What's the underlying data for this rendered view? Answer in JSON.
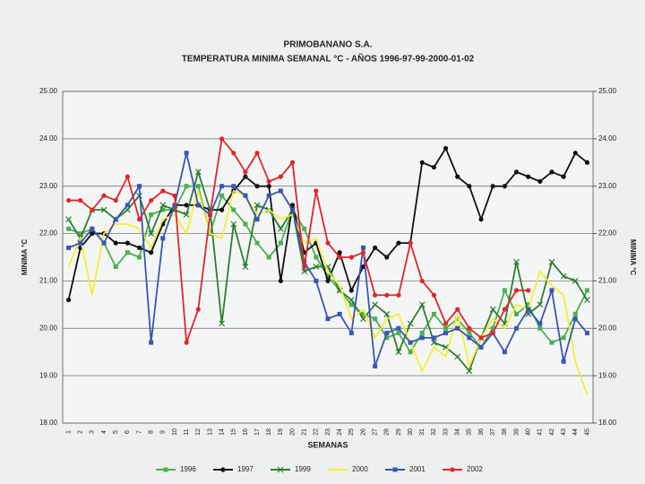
{
  "chart_data": {
    "type": "line",
    "title": "PRIMOBANANO S.A.",
    "subtitle": "TEMPERATURA MINIMA SEMANAL °C - AÑOS 1996-97-99-2000-01-02",
    "xlabel": "SEMANAS",
    "ylabel": "MINIMA °C",
    "y2label": "MINIMA °C",
    "categories": [
      "1",
      "2",
      "3",
      "4",
      "5",
      "6",
      "7",
      "8",
      "9",
      "10",
      "11",
      "12",
      "13",
      "14",
      "15",
      "16",
      "17",
      "18",
      "19",
      "20",
      "21",
      "22",
      "23",
      "24",
      "25",
      "26",
      "27",
      "28",
      "29",
      "30",
      "31",
      "32",
      "33",
      "34",
      "35",
      "36",
      "37",
      "38",
      "39",
      "40",
      "41",
      "42",
      "43",
      "44",
      "45"
    ],
    "ylim": [
      18,
      25
    ],
    "yticks": [
      {
        "value": 18,
        "label": "18.00"
      },
      {
        "value": 19,
        "label": "19.00"
      },
      {
        "value": 20,
        "label": "20.00"
      },
      {
        "value": 21,
        "label": "21.00"
      },
      {
        "value": 22,
        "label": "22.00"
      },
      {
        "value": 23,
        "label": "23.00"
      },
      {
        "value": 24,
        "label": "24.00"
      },
      {
        "value": 25,
        "label": "25.00"
      }
    ],
    "y2lim": [
      18,
      25
    ],
    "y2ticks": [
      {
        "value": 18,
        "label": "18.00"
      },
      {
        "value": 19,
        "label": "19.00"
      },
      {
        "value": 20,
        "label": "20.00"
      },
      {
        "value": 21,
        "label": "21.00"
      },
      {
        "value": 22,
        "label": "22.00"
      },
      {
        "value": 23,
        "label": "23.00"
      },
      {
        "value": 24,
        "label": "24.00"
      },
      {
        "value": 25,
        "label": "25.00"
      }
    ],
    "grid": true,
    "legend": "bottom",
    "series": [
      {
        "name": "1996",
        "color": "#4caf50",
        "marker": "square",
        "values": [
          22.1,
          22.0,
          22.1,
          21.8,
          21.3,
          21.6,
          21.5,
          22.4,
          22.5,
          22.5,
          23.0,
          23.0,
          22.0,
          22.8,
          22.5,
          22.2,
          21.8,
          21.5,
          21.8,
          22.5,
          22.1,
          21.5,
          21.1,
          20.8,
          20.5,
          20.3,
          20.2,
          19.8,
          19.9,
          19.5,
          19.9,
          20.3,
          20.0,
          20.2,
          19.9,
          19.6,
          20.0,
          20.8,
          20.3,
          20.5,
          20.0,
          19.7,
          19.8,
          20.3,
          20.8
        ]
      },
      {
        "name": "1997",
        "color": "#111111",
        "marker": "circle",
        "values": [
          20.6,
          21.7,
          22.0,
          22.0,
          21.8,
          21.8,
          21.7,
          21.6,
          22.2,
          22.6,
          22.6,
          22.6,
          22.5,
          22.5,
          22.9,
          23.2,
          23.0,
          23.0,
          21.0,
          22.6,
          21.6,
          21.8,
          21.0,
          21.6,
          20.8,
          21.3,
          21.7,
          21.5,
          21.8,
          21.8,
          23.5,
          23.4,
          23.8,
          23.2,
          23.0,
          22.3,
          23.0,
          23.0,
          23.3,
          23.2,
          23.1,
          23.3,
          23.2,
          23.7,
          23.5
        ]
      },
      {
        "name": "1999",
        "color": "#2e7d32",
        "marker": "x",
        "values": [
          22.3,
          21.9,
          22.5,
          22.5,
          22.3,
          22.5,
          22.8,
          22.0,
          22.6,
          22.5,
          22.4,
          23.3,
          22.5,
          20.1,
          22.2,
          21.3,
          22.6,
          22.5,
          22.1,
          22.5,
          21.2,
          21.3,
          21.3,
          20.8,
          20.6,
          20.2,
          20.5,
          20.3,
          19.5,
          20.1,
          20.5,
          19.7,
          19.6,
          19.4,
          19.1,
          19.8,
          20.4,
          20.1,
          21.4,
          20.3,
          20.5,
          21.4,
          21.1,
          21.0,
          20.6
        ]
      },
      {
        "name": "2000",
        "color": "#f2ee3a",
        "marker": "none",
        "values": [
          21.3,
          21.9,
          20.7,
          22.0,
          22.2,
          22.2,
          22.1,
          21.7,
          22.3,
          22.4,
          22.0,
          22.9,
          22.0,
          21.9,
          22.9,
          22.8,
          22.4,
          22.5,
          22.3,
          22.4,
          21.8,
          21.9,
          21.2,
          20.9,
          20.2,
          20.4,
          19.8,
          20.2,
          20.3,
          19.7,
          19.1,
          19.6,
          19.4,
          20.3,
          19.2,
          19.8,
          20.2,
          20.0,
          20.5,
          20.4,
          21.2,
          20.9,
          20.7,
          19.3,
          18.6
        ]
      },
      {
        "name": "2001",
        "color": "#3a55b4",
        "marker": "square",
        "values": [
          21.7,
          21.8,
          22.1,
          21.8,
          22.3,
          22.6,
          23.0,
          19.7,
          21.9,
          22.6,
          23.7,
          22.6,
          22.4,
          23.0,
          23.0,
          22.8,
          22.3,
          22.8,
          22.9,
          22.5,
          21.4,
          21.0,
          20.2,
          20.3,
          19.9,
          21.7,
          19.2,
          19.9,
          20.0,
          19.7,
          19.8,
          19.8,
          19.9,
          20.0,
          19.8,
          19.6,
          19.9,
          19.5,
          20.0,
          20.4,
          20.1,
          20.8,
          19.3,
          20.2,
          19.9
        ]
      },
      {
        "name": "2002",
        "color": "#e0262b",
        "marker": "circle",
        "values": [
          22.7,
          22.7,
          22.5,
          22.8,
          22.7,
          23.2,
          22.3,
          22.7,
          22.9,
          22.8,
          19.7,
          20.4,
          22.4,
          24.0,
          23.7,
          23.3,
          23.7,
          23.1,
          23.2,
          23.5,
          21.3,
          22.9,
          21.8,
          21.5,
          21.5,
          21.6,
          20.7,
          20.7,
          20.7,
          21.8,
          21.0,
          20.7,
          20.1,
          20.4,
          20.0,
          19.8,
          19.9,
          20.4,
          20.8,
          20.8,
          null,
          null,
          null,
          null,
          null
        ]
      }
    ]
  }
}
